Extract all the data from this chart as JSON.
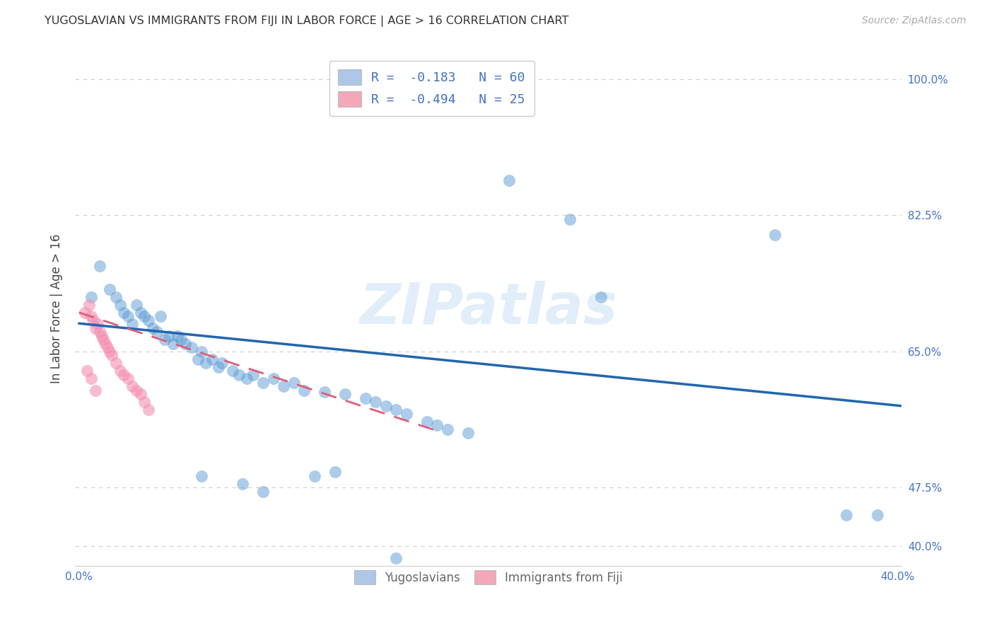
{
  "title": "YUGOSLAVIAN VS IMMIGRANTS FROM FIJI IN LABOR FORCE | AGE > 16 CORRELATION CHART",
  "source": "Source: ZipAtlas.com",
  "ylabel": "In Labor Force | Age > 16",
  "xlim": [
    -0.002,
    0.402
  ],
  "ylim": [
    0.375,
    1.035
  ],
  "right_ytick_positions": [
    1.0,
    0.825,
    0.65,
    0.475,
    0.4
  ],
  "right_ytick_labels": [
    "100.0%",
    "82.5%",
    "65.0%",
    "47.5%",
    "40.0%"
  ],
  "legend_r1": "R =  -0.183   N = 60",
  "legend_r2": "R =  -0.494   N = 25",
  "legend_color1": "#aec6e8",
  "legend_color2": "#f4a7b9",
  "watermark": "ZIPatlas",
  "blue_color": "#5b9bd5",
  "pink_color": "#f48fb1",
  "blue_line_color": "#2166ac",
  "pink_line_color": "#e05c7a",
  "grid_color": "#cccccc",
  "text_color": "#4472c4",
  "blue_scatter": [
    [
      0.006,
      0.72
    ],
    [
      0.01,
      0.76
    ],
    [
      0.015,
      0.73
    ],
    [
      0.018,
      0.72
    ],
    [
      0.02,
      0.71
    ],
    [
      0.022,
      0.7
    ],
    [
      0.024,
      0.695
    ],
    [
      0.026,
      0.685
    ],
    [
      0.028,
      0.71
    ],
    [
      0.03,
      0.7
    ],
    [
      0.032,
      0.695
    ],
    [
      0.034,
      0.69
    ],
    [
      0.036,
      0.68
    ],
    [
      0.038,
      0.675
    ],
    [
      0.04,
      0.695
    ],
    [
      0.042,
      0.665
    ],
    [
      0.044,
      0.67
    ],
    [
      0.046,
      0.66
    ],
    [
      0.048,
      0.67
    ],
    [
      0.05,
      0.665
    ],
    [
      0.052,
      0.66
    ],
    [
      0.055,
      0.655
    ],
    [
      0.058,
      0.64
    ],
    [
      0.06,
      0.65
    ],
    [
      0.062,
      0.635
    ],
    [
      0.065,
      0.64
    ],
    [
      0.068,
      0.63
    ],
    [
      0.07,
      0.635
    ],
    [
      0.075,
      0.625
    ],
    [
      0.078,
      0.62
    ],
    [
      0.082,
      0.615
    ],
    [
      0.085,
      0.62
    ],
    [
      0.09,
      0.61
    ],
    [
      0.095,
      0.615
    ],
    [
      0.1,
      0.605
    ],
    [
      0.105,
      0.61
    ],
    [
      0.11,
      0.6
    ],
    [
      0.12,
      0.598
    ],
    [
      0.13,
      0.595
    ],
    [
      0.14,
      0.59
    ],
    [
      0.145,
      0.585
    ],
    [
      0.15,
      0.58
    ],
    [
      0.155,
      0.575
    ],
    [
      0.16,
      0.57
    ],
    [
      0.17,
      0.56
    ],
    [
      0.175,
      0.555
    ],
    [
      0.18,
      0.55
    ],
    [
      0.19,
      0.545
    ],
    [
      0.115,
      0.49
    ],
    [
      0.125,
      0.495
    ],
    [
      0.06,
      0.49
    ],
    [
      0.08,
      0.48
    ],
    [
      0.09,
      0.47
    ],
    [
      0.155,
      0.385
    ],
    [
      0.21,
      0.87
    ],
    [
      0.24,
      0.82
    ],
    [
      0.255,
      0.72
    ],
    [
      0.34,
      0.8
    ],
    [
      0.375,
      0.44
    ],
    [
      0.39,
      0.44
    ]
  ],
  "pink_scatter": [
    [
      0.003,
      0.7
    ],
    [
      0.005,
      0.71
    ],
    [
      0.006,
      0.695
    ],
    [
      0.007,
      0.69
    ],
    [
      0.008,
      0.68
    ],
    [
      0.009,
      0.685
    ],
    [
      0.01,
      0.675
    ],
    [
      0.011,
      0.67
    ],
    [
      0.012,
      0.665
    ],
    [
      0.013,
      0.66
    ],
    [
      0.014,
      0.655
    ],
    [
      0.015,
      0.65
    ],
    [
      0.016,
      0.645
    ],
    [
      0.018,
      0.635
    ],
    [
      0.02,
      0.625
    ],
    [
      0.022,
      0.62
    ],
    [
      0.024,
      0.615
    ],
    [
      0.026,
      0.605
    ],
    [
      0.028,
      0.6
    ],
    [
      0.03,
      0.595
    ],
    [
      0.032,
      0.585
    ],
    [
      0.034,
      0.575
    ],
    [
      0.004,
      0.625
    ],
    [
      0.006,
      0.615
    ],
    [
      0.008,
      0.6
    ]
  ],
  "blue_trendline": [
    [
      0.0,
      0.686
    ],
    [
      0.402,
      0.58
    ]
  ],
  "pink_trendline": [
    [
      0.0,
      0.7
    ],
    [
      0.175,
      0.548
    ]
  ]
}
